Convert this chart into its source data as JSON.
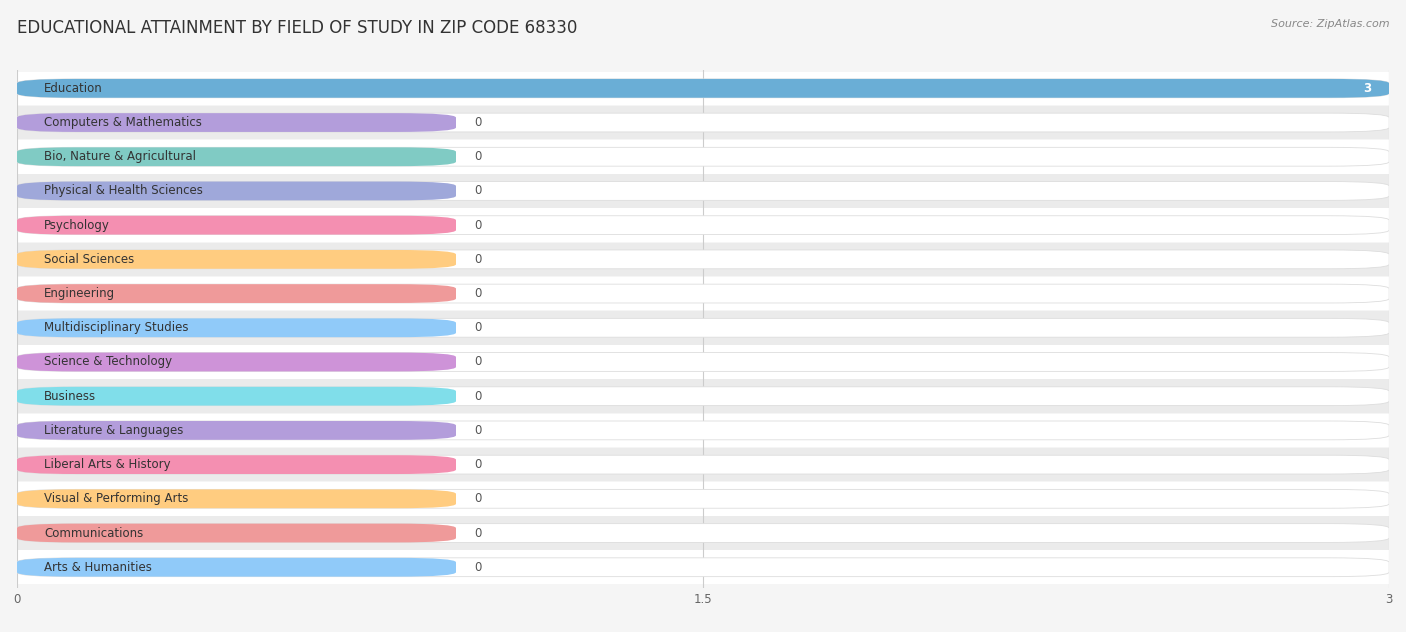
{
  "title": "EDUCATIONAL ATTAINMENT BY FIELD OF STUDY IN ZIP CODE 68330",
  "source": "Source: ZipAtlas.com",
  "categories": [
    "Education",
    "Computers & Mathematics",
    "Bio, Nature & Agricultural",
    "Physical & Health Sciences",
    "Psychology",
    "Social Sciences",
    "Engineering",
    "Multidisciplinary Studies",
    "Science & Technology",
    "Business",
    "Literature & Languages",
    "Liberal Arts & History",
    "Visual & Performing Arts",
    "Communications",
    "Arts & Humanities"
  ],
  "values": [
    3,
    0,
    0,
    0,
    0,
    0,
    0,
    0,
    0,
    0,
    0,
    0,
    0,
    0,
    0
  ],
  "bar_colors": [
    "#6aaed6",
    "#b39ddb",
    "#80cbc4",
    "#9fa8da",
    "#f48fb1",
    "#ffcc80",
    "#ef9a9a",
    "#90caf9",
    "#ce93d8",
    "#80deea",
    "#b39ddb",
    "#f48fb1",
    "#ffcc80",
    "#ef9a9a",
    "#90caf9"
  ],
  "bg_color": "#f5f5f5",
  "row_white": "#ffffff",
  "row_gray": "#ebebeb",
  "full_bar_bg": "#e8eaf0",
  "xlim": [
    0,
    3
  ],
  "xticks": [
    0,
    1.5,
    3
  ],
  "title_fontsize": 12,
  "label_fontsize": 8.5,
  "value_fontsize": 8.5,
  "grid_color": "#cccccc",
  "zero_bar_width": 0.96,
  "bar_height": 0.55
}
